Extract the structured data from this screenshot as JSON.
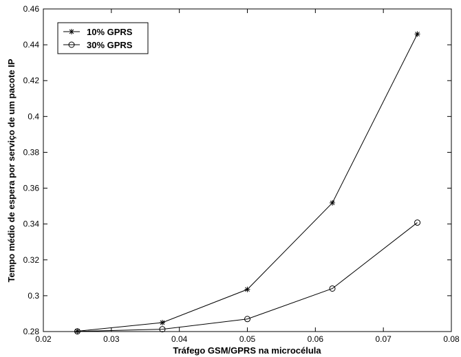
{
  "chart_data": {
    "type": "line",
    "title": "",
    "xlabel": "Tráfego GSM/GPRS na microcélula",
    "ylabel": "Tempo médio de espera por serviço de um pacote IP",
    "xlim": [
      0.02,
      0.08
    ],
    "ylim": [
      0.28,
      0.46
    ],
    "xticks": [
      0.02,
      0.03,
      0.04,
      0.05,
      0.06,
      0.07,
      0.08
    ],
    "xtick_labels": [
      "0.02",
      "0.03",
      "0.04",
      "0.05",
      "0.06",
      "0.07",
      "0.08"
    ],
    "yticks": [
      0.28,
      0.3,
      0.32,
      0.34,
      0.36,
      0.38,
      0.4,
      0.42,
      0.44,
      0.46
    ],
    "ytick_labels": [
      "0.28",
      "0.3",
      "0.32",
      "0.34",
      "0.36",
      "0.38",
      "0.4",
      "0.42",
      "0.44",
      "0.46"
    ],
    "grid": false,
    "legend_position": "top-left",
    "x": [
      0.025,
      0.0375,
      0.05,
      0.0625,
      0.075
    ],
    "series": [
      {
        "name": "10% GPRS",
        "marker": "asterisk",
        "color": "#000000",
        "values": [
          0.2802,
          0.285,
          0.3035,
          0.3518,
          0.446
        ]
      },
      {
        "name": "30% GPRS",
        "marker": "circle",
        "color": "#000000",
        "values": [
          0.2801,
          0.2813,
          0.287,
          0.304,
          0.3408
        ]
      }
    ]
  }
}
